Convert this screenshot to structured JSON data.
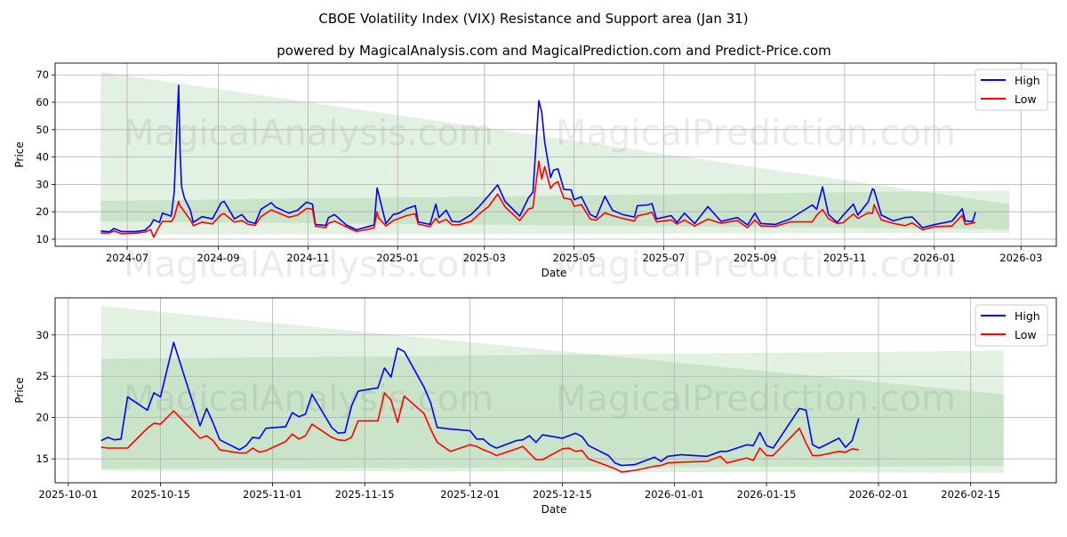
{
  "title": "CBOE Volatility Index (VIX) Resistance and Support area (Jan 31)",
  "subtitle": "powered by MagicalAnalysis.com and MagicalPrediction.com and Predict-Price.com",
  "watermarks": [
    "MagicalAnalysis.com",
    "MagicalPrediction.com"
  ],
  "colors": {
    "high": "#0000ff",
    "low": "#ff0000",
    "band": "#008000",
    "grid": "#b0b0b0"
  },
  "chart_data": [
    {
      "type": "line",
      "title": "",
      "xlabel": "Date",
      "ylabel": "Price",
      "xlim": [
        "2024-05-13",
        "2026-03-25"
      ],
      "ylim": [
        7.4,
        74.3
      ],
      "grid": true,
      "legend": {
        "position": "top-right",
        "entries": [
          "High",
          "Low"
        ]
      },
      "xticks": [
        {
          "date": "2024-07-01",
          "label": "2024-07"
        },
        {
          "date": "2024-09-01",
          "label": "2024-09"
        },
        {
          "date": "2024-11-01",
          "label": "2024-11"
        },
        {
          "date": "2025-01-01",
          "label": "2025-01"
        },
        {
          "date": "2025-03-01",
          "label": "2025-03"
        },
        {
          "date": "2025-05-01",
          "label": "2025-05"
        },
        {
          "date": "2025-07-01",
          "label": "2025-07"
        },
        {
          "date": "2025-09-01",
          "label": "2025-09"
        },
        {
          "date": "2025-11-01",
          "label": "2025-11"
        },
        {
          "date": "2026-01-01",
          "label": "2026-01"
        },
        {
          "date": "2026-03-01",
          "label": "2026-03"
        }
      ],
      "yticks": [
        10,
        20,
        30,
        40,
        50,
        60,
        70
      ],
      "bands": [
        {
          "name": "resistance-support-wide",
          "x": [
            "2024-06-13",
            "2026-02-21"
          ],
          "top": [
            71.1,
            22.8
          ],
          "bottom": [
            11.6,
            12.3
          ]
        },
        {
          "name": "resistance-support-core",
          "x": [
            "2024-06-13",
            "2026-02-21"
          ],
          "top": [
            24.0,
            27.8
          ],
          "bottom": [
            16.5,
            13.6
          ]
        }
      ],
      "x": [
        "2024-06-13",
        "2024-06-19",
        "2024-06-22",
        "2024-06-27",
        "2024-07-07",
        "2024-07-13",
        "2024-07-17",
        "2024-07-19",
        "2024-07-23",
        "2024-07-25",
        "2024-07-31",
        "2024-08-02",
        "2024-08-05",
        "2024-08-06",
        "2024-08-07",
        "2024-08-09",
        "2024-08-13",
        "2024-08-15",
        "2024-08-21",
        "2024-08-28",
        "2024-09-03",
        "2024-09-05",
        "2024-09-12",
        "2024-09-17",
        "2024-09-21",
        "2024-09-26",
        "2024-09-30",
        "2024-10-07",
        "2024-10-10",
        "2024-10-19",
        "2024-10-25",
        "2024-10-31",
        "2024-11-04",
        "2024-11-06",
        "2024-11-13",
        "2024-11-15",
        "2024-11-19",
        "2024-11-27",
        "2024-12-04",
        "2024-12-12",
        "2024-12-16",
        "2024-12-18",
        "2024-12-19",
        "2024-12-24",
        "2024-12-29",
        "2025-01-02",
        "2025-01-07",
        "2025-01-13",
        "2025-01-15",
        "2025-01-23",
        "2025-01-27",
        "2025-01-29",
        "2025-02-03",
        "2025-02-07",
        "2025-02-12",
        "2025-02-20",
        "2025-02-25",
        "2025-03-04",
        "2025-03-10",
        "2025-03-15",
        "2025-03-25",
        "2025-03-31",
        "2025-04-03",
        "2025-04-07",
        "2025-04-09",
        "2025-04-11",
        "2025-04-15",
        "2025-04-17",
        "2025-04-20",
        "2025-04-24",
        "2025-04-29",
        "2025-05-01",
        "2025-05-06",
        "2025-05-12",
        "2025-05-16",
        "2025-05-22",
        "2025-05-27",
        "2025-06-03",
        "2025-06-11",
        "2025-06-13",
        "2025-06-20",
        "2025-06-23",
        "2025-06-26",
        "2025-07-06",
        "2025-07-10",
        "2025-07-15",
        "2025-07-22",
        "2025-07-31",
        "2025-08-09",
        "2025-08-20",
        "2025-08-27",
        "2025-09-01",
        "2025-09-05",
        "2025-09-15",
        "2025-09-25",
        "2025-10-10",
        "2025-10-13",
        "2025-10-17",
        "2025-10-21",
        "2025-10-27",
        "2025-10-31",
        "2025-11-07",
        "2025-11-10",
        "2025-11-17",
        "2025-11-20",
        "2025-11-21",
        "2025-11-26",
        "2025-12-04",
        "2025-12-12",
        "2025-12-17",
        "2025-12-24",
        "2026-01-01",
        "2026-01-13",
        "2026-01-20",
        "2026-01-22",
        "2026-01-27",
        "2026-01-29"
      ],
      "series": [
        {
          "name": "High",
          "values": [
            13.0,
            12.7,
            13.9,
            12.8,
            12.8,
            13.2,
            15.2,
            17.1,
            16.1,
            19.5,
            18.4,
            27.1,
            66.2,
            42.2,
            29.2,
            24.9,
            20.6,
            16.1,
            18.2,
            17.4,
            23.3,
            23.8,
            17.4,
            19.0,
            16.5,
            15.7,
            20.9,
            23.3,
            21.7,
            19.5,
            20.6,
            23.5,
            22.8,
            15.4,
            15.0,
            17.9,
            19.0,
            15.2,
            13.4,
            14.6,
            15.2,
            28.7,
            26.5,
            15.7,
            19.0,
            19.5,
            21.1,
            22.2,
            16.3,
            15.4,
            22.8,
            17.9,
            20.6,
            16.5,
            16.3,
            19.0,
            21.7,
            26.0,
            29.8,
            23.8,
            18.4,
            25.1,
            27.1,
            60.6,
            56.3,
            45.5,
            32.5,
            35.2,
            35.7,
            28.2,
            28.0,
            24.4,
            25.5,
            19.0,
            17.9,
            25.7,
            20.6,
            19.0,
            18.1,
            22.2,
            22.5,
            23.0,
            17.4,
            18.6,
            16.1,
            19.5,
            15.7,
            21.9,
            16.5,
            17.9,
            15.2,
            19.5,
            15.7,
            15.4,
            17.4,
            22.5,
            20.9,
            29.1,
            19.0,
            16.1,
            18.7,
            22.8,
            18.8,
            23.6,
            28.4,
            28.0,
            18.8,
            16.7,
            17.9,
            18.1,
            14.2,
            15.3,
            16.6,
            21.1,
            16.7,
            16.4,
            19.9
          ]
        },
        {
          "name": "Low",
          "values": [
            12.2,
            12.3,
            13.0,
            12.0,
            12.2,
            12.6,
            13.5,
            10.7,
            14.8,
            16.5,
            16.4,
            18.0,
            23.8,
            22.0,
            21.5,
            20.0,
            17.0,
            14.9,
            16.2,
            15.6,
            19.0,
            19.3,
            16.2,
            16.8,
            15.5,
            15.0,
            18.2,
            20.7,
            20.0,
            18.0,
            18.8,
            21.2,
            21.0,
            14.7,
            14.2,
            15.8,
            16.6,
            14.5,
            12.8,
            13.6,
            14.2,
            20.0,
            17.8,
            14.8,
            16.8,
            17.6,
            18.6,
            19.3,
            15.5,
            14.6,
            17.6,
            16.0,
            17.2,
            15.2,
            15.3,
            16.5,
            19.0,
            22.0,
            26.5,
            21.8,
            16.8,
            21.0,
            21.5,
            38.5,
            32.0,
            36.5,
            28.5,
            30.0,
            31.0,
            25.0,
            24.5,
            22.0,
            22.6,
            17.3,
            16.9,
            19.6,
            18.6,
            17.6,
            16.6,
            18.5,
            19.3,
            19.8,
            16.3,
            17.0,
            15.5,
            17.0,
            14.8,
            17.3,
            15.8,
            16.8,
            14.2,
            17.0,
            14.8,
            14.7,
            16.3,
            16.3,
            18.7,
            20.8,
            17.5,
            15.7,
            16.0,
            19.2,
            17.6,
            19.6,
            19.4,
            22.6,
            17.0,
            15.8,
            14.9,
            15.9,
            13.4,
            14.5,
            14.8,
            18.7,
            15.4,
            15.8,
            16.1
          ]
        }
      ]
    },
    {
      "type": "line",
      "title": "",
      "xlabel": "Date",
      "ylabel": "Price",
      "xlim": [
        "2025-09-29",
        "2026-02-28"
      ],
      "ylim": [
        12.1,
        34.5
      ],
      "grid": true,
      "legend": {
        "position": "top-right",
        "entries": [
          "High",
          "Low"
        ]
      },
      "xticks": [
        {
          "date": "2025-10-01",
          "label": "2025-10-01"
        },
        {
          "date": "2025-10-15",
          "label": "2025-10-15"
        },
        {
          "date": "2025-11-01",
          "label": "2025-11-01"
        },
        {
          "date": "2025-11-15",
          "label": "2025-11-15"
        },
        {
          "date": "2025-12-01",
          "label": "2025-12-01"
        },
        {
          "date": "2025-12-15",
          "label": "2025-12-15"
        },
        {
          "date": "2026-01-01",
          "label": "2026-01-01"
        },
        {
          "date": "2026-01-15",
          "label": "2026-01-15"
        },
        {
          "date": "2026-02-01",
          "label": "2026-02-01"
        },
        {
          "date": "2026-02-15",
          "label": "2026-02-15"
        }
      ],
      "yticks": [
        15,
        20,
        25,
        30
      ],
      "bands": [
        {
          "name": "resistance-support-wide",
          "x": [
            "2025-10-06",
            "2026-02-20"
          ],
          "top": [
            33.5,
            22.8
          ],
          "bottom": [
            13.55,
            13.3
          ]
        },
        {
          "name": "resistance-support-core",
          "x": [
            "2025-10-06",
            "2026-02-20"
          ],
          "top": [
            27.1,
            28.1
          ],
          "bottom": [
            13.8,
            14.1
          ]
        }
      ],
      "x": [
        "2025-10-06",
        "2025-10-07",
        "2025-10-08",
        "2025-10-09",
        "2025-10-10",
        "2025-10-13",
        "2025-10-14",
        "2025-10-15",
        "2025-10-17",
        "2025-10-21",
        "2025-10-22",
        "2025-10-23",
        "2025-10-24",
        "2025-10-27",
        "2025-10-28",
        "2025-10-29",
        "2025-10-30",
        "2025-10-31",
        "2025-11-03",
        "2025-11-04",
        "2025-11-05",
        "2025-11-06",
        "2025-11-07",
        "2025-11-10",
        "2025-11-11",
        "2025-11-12",
        "2025-11-13",
        "2025-11-14",
        "2025-11-17",
        "2025-11-18",
        "2025-11-19",
        "2025-11-20",
        "2025-11-21",
        "2025-11-24",
        "2025-11-25",
        "2025-11-26",
        "2025-11-28",
        "2025-12-01",
        "2025-12-02",
        "2025-12-03",
        "2025-12-04",
        "2025-12-05",
        "2025-12-08",
        "2025-12-09",
        "2025-12-10",
        "2025-12-11",
        "2025-12-12",
        "2025-12-15",
        "2025-12-16",
        "2025-12-17",
        "2025-12-18",
        "2025-12-19",
        "2025-12-22",
        "2025-12-23",
        "2025-12-24",
        "2025-12-26",
        "2025-12-29",
        "2025-12-30",
        "2025-12-31",
        "2026-01-02",
        "2026-01-06",
        "2026-01-08",
        "2026-01-09",
        "2026-01-12",
        "2026-01-13",
        "2026-01-14",
        "2026-01-15",
        "2026-01-16",
        "2026-01-20",
        "2026-01-21",
        "2026-01-22",
        "2026-01-23",
        "2026-01-26",
        "2026-01-27",
        "2026-01-28",
        "2026-01-29"
      ],
      "series": [
        {
          "name": "High",
          "values": [
            17.2,
            17.6,
            17.3,
            17.4,
            22.5,
            20.9,
            23.0,
            22.5,
            29.1,
            19.0,
            21.1,
            19.3,
            17.3,
            16.1,
            16.6,
            17.6,
            17.5,
            18.7,
            18.9,
            20.6,
            20.1,
            20.4,
            22.8,
            18.8,
            18.1,
            18.2,
            21.4,
            23.2,
            23.6,
            26.0,
            24.9,
            28.4,
            28.0,
            23.7,
            21.8,
            18.8,
            18.6,
            18.4,
            17.4,
            17.4,
            16.7,
            16.3,
            17.2,
            17.3,
            17.8,
            17.0,
            17.9,
            17.5,
            17.8,
            18.1,
            17.7,
            16.6,
            15.4,
            14.5,
            14.2,
            14.3,
            15.2,
            14.7,
            15.3,
            15.5,
            15.3,
            15.9,
            15.9,
            16.7,
            16.6,
            18.2,
            16.6,
            16.3,
            21.1,
            20.9,
            16.7,
            16.3,
            17.5,
            16.4,
            17.2,
            19.9
          ]
        },
        {
          "name": "Low",
          "values": [
            16.4,
            16.3,
            16.3,
            16.3,
            16.3,
            18.7,
            19.3,
            19.2,
            20.8,
            17.5,
            17.8,
            17.2,
            16.1,
            15.7,
            15.7,
            16.3,
            15.8,
            16.0,
            17.1,
            18.0,
            17.4,
            17.8,
            19.2,
            17.6,
            17.3,
            17.2,
            17.6,
            19.6,
            19.6,
            23.0,
            22.1,
            19.4,
            22.6,
            20.5,
            18.6,
            17.0,
            15.9,
            16.7,
            16.5,
            16.1,
            15.8,
            15.4,
            16.2,
            16.5,
            15.7,
            14.9,
            14.9,
            16.2,
            16.3,
            15.9,
            16.0,
            15.0,
            14.1,
            13.8,
            13.4,
            13.6,
            14.1,
            14.2,
            14.5,
            14.6,
            14.7,
            15.3,
            14.5,
            15.1,
            14.8,
            16.3,
            15.4,
            15.4,
            18.7,
            16.9,
            15.4,
            15.4,
            15.9,
            15.8,
            16.2,
            16.1
          ]
        }
      ]
    }
  ]
}
